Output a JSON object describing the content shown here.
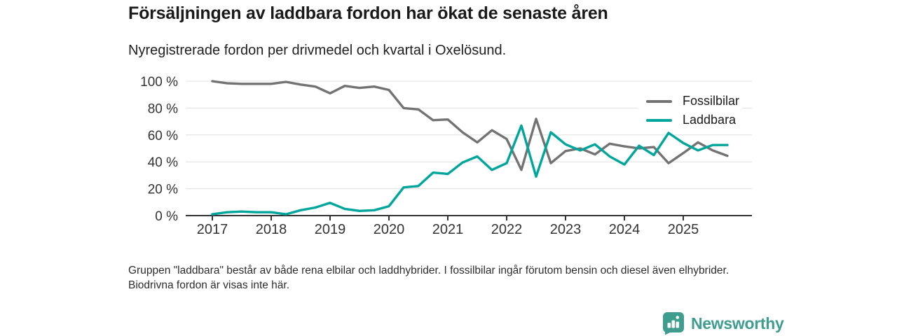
{
  "header": {
    "title": "Försäljningen av laddbara fordon har ökat de senaste åren",
    "subtitle": "Nyregistrerade fordon per drivmedel och kvartal i Oxelösund."
  },
  "chart_data": {
    "type": "line",
    "title": "Försäljningen av laddbara fordon har ökat de senaste åren",
    "subtitle": "Nyregistrerade fordon per drivmedel och kvartal i Oxelösund.",
    "x_unit": "kvartal",
    "x": [
      "2017 Q1",
      "2017 Q2",
      "2017 Q3",
      "2017 Q4",
      "2018 Q1",
      "2018 Q2",
      "2018 Q3",
      "2018 Q4",
      "2019 Q1",
      "2019 Q2",
      "2019 Q3",
      "2019 Q4",
      "2020 Q1",
      "2020 Q2",
      "2020 Q3",
      "2020 Q4",
      "2021 Q1",
      "2021 Q2",
      "2021 Q3",
      "2021 Q4",
      "2022 Q1",
      "2022 Q2",
      "2022 Q3",
      "2022 Q4",
      "2023 Q1",
      "2023 Q2",
      "2023 Q3",
      "2023 Q4",
      "2024 Q1",
      "2024 Q2",
      "2024 Q3",
      "2024 Q4",
      "2025 Q1",
      "2025 Q2",
      "2025 Q3",
      "2025 Q4"
    ],
    "series": [
      {
        "name": "Fossilbilar",
        "color": "#737373",
        "values": [
          100,
          98.5,
          98,
          98,
          98,
          99.5,
          97.5,
          96,
          91,
          96.5,
          95,
          96,
          93.5,
          80,
          79,
          71,
          71.5,
          62,
          54.5,
          63.5,
          57,
          34,
          72,
          39,
          48,
          50,
          45.5,
          53.5,
          51.5,
          50,
          51,
          39,
          46.5,
          54.5,
          48.5,
          44.5
        ]
      },
      {
        "name": "Laddbara",
        "color": "#00A69C",
        "values": [
          1,
          2.5,
          3,
          2.5,
          2.5,
          1,
          4,
          6,
          9.5,
          5,
          3.5,
          4,
          7,
          21,
          22,
          32,
          31,
          39.5,
          44,
          34,
          39,
          67,
          29,
          62,
          53,
          48.5,
          53,
          44,
          38,
          52,
          45,
          61.5,
          54,
          48.5,
          52.5,
          52.5
        ]
      }
    ],
    "ylim": [
      0,
      100
    ],
    "yticks": [
      0,
      20,
      40,
      60,
      80,
      100
    ],
    "ytick_suffix": " %",
    "year_ticks": [
      "2017",
      "2018",
      "2019",
      "2020",
      "2021",
      "2022",
      "2023",
      "2024",
      "2025"
    ],
    "grid": "horizontal",
    "legend_position": "top-right"
  },
  "footnote": {
    "text": "Gruppen \"laddbara\" består av både rena elbilar och laddhybrider. I fossilbilar ingår förutom bensin och diesel även elhybrider. Biodrivna fordon är visas inte här."
  },
  "logo": {
    "text": "Newsworthy",
    "color": "#3E9D8F",
    "icon": "bar-chart-speech-bubble-icon"
  }
}
